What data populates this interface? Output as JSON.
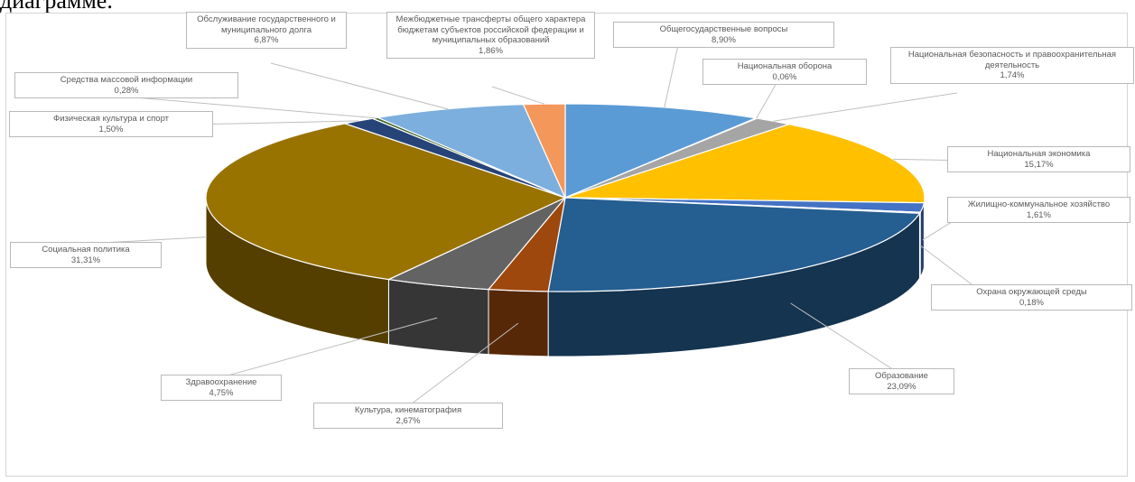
{
  "page": {
    "top_text": "диаграмме."
  },
  "chart_data": {
    "type": "pie",
    "title": "",
    "slices": [
      {
        "name": "Общегосударственные вопросы",
        "value": 8.9,
        "label": "8,90%",
        "color": "#5b9bd5"
      },
      {
        "name": "Национальная оборона",
        "value": 0.06,
        "label": "0,06%",
        "color": "#a5a5a5"
      },
      {
        "name": "Национальная безопасность и правоохранительная деятельность",
        "value": 1.74,
        "label": "1,74%",
        "color": "#a5a5a5"
      },
      {
        "name": "Национальная экономика",
        "value": 15.17,
        "label": "15,17%",
        "color": "#ffc000"
      },
      {
        "name": "Жилищно-коммунальное хозяйство",
        "value": 1.61,
        "label": "1,61%",
        "color": "#4472c4"
      },
      {
        "name": "Охрана окружающей среды",
        "value": 0.18,
        "label": "0,18%",
        "color": "#70ad47"
      },
      {
        "name": "Образование",
        "value": 23.09,
        "label": "23,09%",
        "color": "#255e91"
      },
      {
        "name": "Культура, кинематография",
        "value": 2.67,
        "label": "2,67%",
        "color": "#9e480e"
      },
      {
        "name": "Здравоохранение",
        "value": 4.75,
        "label": "4,75%",
        "color": "#636363"
      },
      {
        "name": "Социальная политика",
        "value": 31.31,
        "label": "31,31%",
        "color": "#997300"
      },
      {
        "name": "Физическая культура и спорт",
        "value": 1.5,
        "label": "1,50%",
        "color": "#264478"
      },
      {
        "name": "Средства массовой информации",
        "value": 0.28,
        "label": "0,28%",
        "color": "#43682b"
      },
      {
        "name": "Обслуживание государственного и муниципального долга",
        "value": 6.87,
        "label": "6,87%",
        "color": "#7cafdd"
      },
      {
        "name": "Межбюджетные трансферты общего характера бюджетам субъектов российской федерации и муниципальных образований",
        "value": 1.86,
        "label": "1,86%",
        "color": "#f4975a"
      }
    ]
  }
}
